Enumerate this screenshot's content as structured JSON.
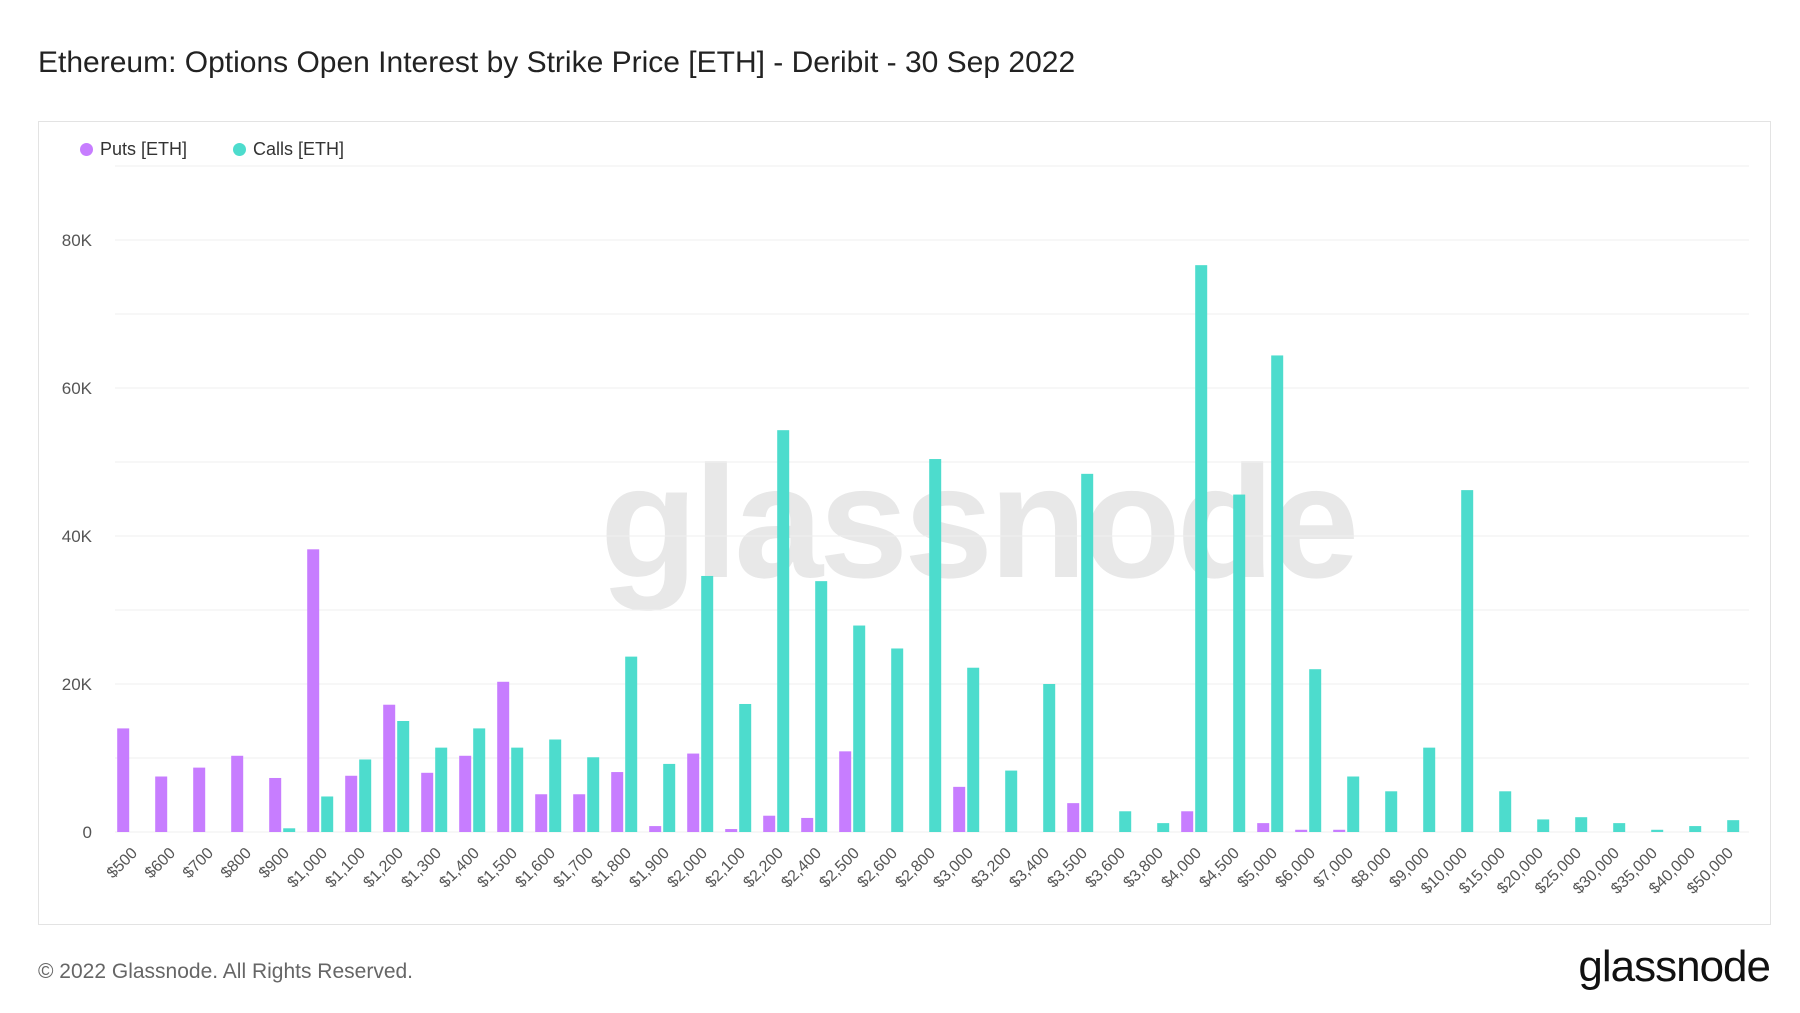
{
  "chart_data": {
    "type": "bar",
    "title": "Ethereum: Options Open Interest by Strike Price [ETH] - Deribit - 30 Sep 2022",
    "xlabel": "",
    "ylabel": "",
    "ylim": [
      0,
      90000
    ],
    "yticks": [
      0,
      20000,
      40000,
      60000,
      80000
    ],
    "ytick_labels": [
      "0",
      "20K",
      "40K",
      "60K",
      "80K"
    ],
    "grid": true,
    "legend_position": "top-left",
    "categories": [
      "$500",
      "$600",
      "$700",
      "$800",
      "$900",
      "$1,000",
      "$1,100",
      "$1,200",
      "$1,300",
      "$1,400",
      "$1,500",
      "$1,600",
      "$1,700",
      "$1,800",
      "$1,900",
      "$2,000",
      "$2,100",
      "$2,200",
      "$2,400",
      "$2,500",
      "$2,600",
      "$2,800",
      "$3,000",
      "$3,200",
      "$3,400",
      "$3,500",
      "$3,600",
      "$3,800",
      "$4,000",
      "$4,500",
      "$5,000",
      "$6,000",
      "$7,000",
      "$8,000",
      "$9,000",
      "$10,000",
      "$15,000",
      "$20,000",
      "$25,000",
      "$30,000",
      "$35,000",
      "$40,000",
      "$50,000"
    ],
    "series": [
      {
        "name": "Puts [ETH]",
        "color": "#c77dff",
        "values": [
          14000,
          7500,
          8700,
          10300,
          7300,
          38200,
          7600,
          17200,
          8000,
          10300,
          20300,
          5100,
          5100,
          8100,
          800,
          10600,
          400,
          2200,
          1900,
          10900,
          0,
          0,
          6100,
          0,
          0,
          3900,
          0,
          0,
          2800,
          0,
          1200,
          300,
          300,
          0,
          0,
          0,
          0,
          0,
          0,
          0,
          0,
          0,
          0
        ]
      },
      {
        "name": "Calls [ETH]",
        "color": "#4ddccd",
        "values": [
          0,
          0,
          0,
          0,
          500,
          4800,
          9800,
          15000,
          11400,
          14000,
          11400,
          12500,
          10100,
          23700,
          9200,
          34600,
          17300,
          54300,
          33900,
          27900,
          24800,
          50400,
          22200,
          8300,
          20000,
          48400,
          2800,
          1200,
          76600,
          45600,
          64400,
          22000,
          7500,
          5500,
          11400,
          46200,
          5500,
          1700,
          2000,
          1200,
          300,
          800,
          1600
        ]
      }
    ]
  },
  "watermark": "glassnode",
  "footer": {
    "copyright": "© 2022 Glassnode. All Rights Reserved.",
    "logo": "glassnode"
  }
}
